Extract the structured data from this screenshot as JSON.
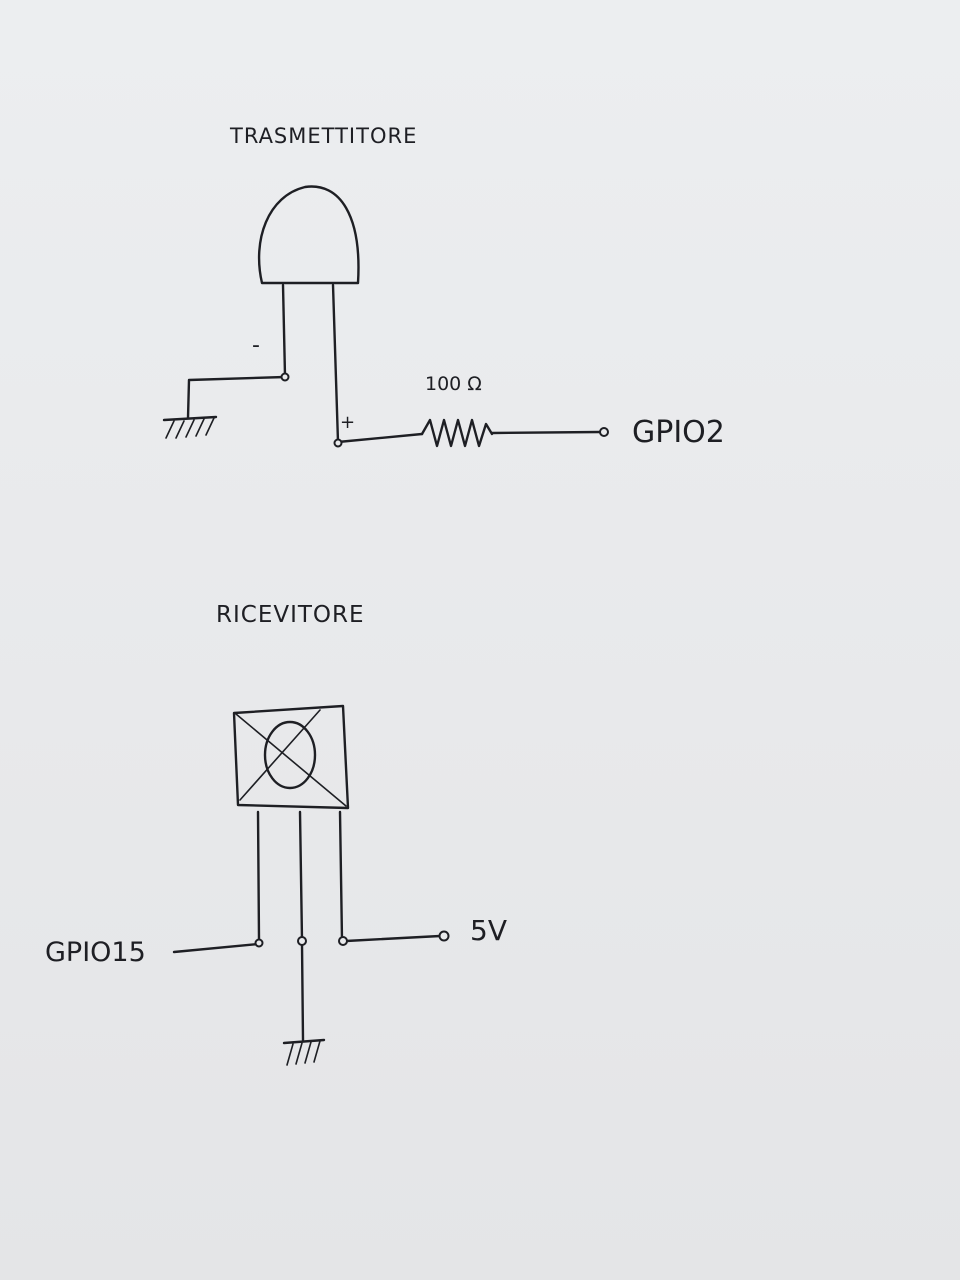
{
  "transmitter": {
    "title": "TRASMETTITORE",
    "minus_sign": "-",
    "plus_sign": "+",
    "resistor_value": "100 Ω",
    "gpio_label": "GPIO2"
  },
  "receiver": {
    "title": "RICEVITORE",
    "gpio_label": "GPIO15",
    "power_label": "5V"
  },
  "colors": {
    "paper": "#e9eaec",
    "ink": "#1e1f24"
  }
}
